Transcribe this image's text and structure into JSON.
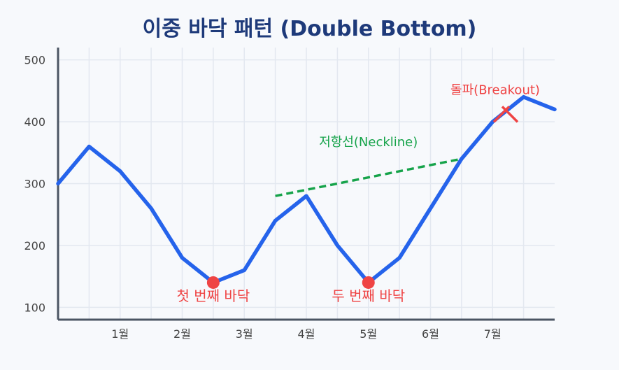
{
  "chart_data": {
    "type": "line",
    "title": "이중 바닥 패턴 (Double Bottom)",
    "xlabel": "",
    "ylabel": "",
    "ylim": [
      80,
      520
    ],
    "xlim": [
      0,
      8
    ],
    "grid": true,
    "x_ticks": [
      {
        "x": 1,
        "label": "1월"
      },
      {
        "x": 2,
        "label": "2월"
      },
      {
        "x": 3,
        "label": "3월"
      },
      {
        "x": 4,
        "label": "4월"
      },
      {
        "x": 5,
        "label": "5월"
      },
      {
        "x": 6,
        "label": "6월"
      },
      {
        "x": 7,
        "label": "7월"
      }
    ],
    "y_ticks": [
      100,
      200,
      300,
      400,
      500
    ],
    "series": [
      {
        "color": "#2563eb",
        "x": [
          0,
          0.5,
          1,
          1.5,
          2,
          2.5,
          3,
          3.5,
          4,
          4.5,
          5,
          5.5,
          6,
          6.5,
          7,
          7.5,
          8
        ],
        "values": [
          300,
          360,
          320,
          260,
          180,
          140,
          160,
          240,
          280,
          200,
          140,
          180,
          260,
          340,
          400,
          440,
          420
        ]
      }
    ],
    "bottoms": [
      {
        "x": 2.5,
        "y": 140,
        "label": "첫 번째 바닥"
      },
      {
        "x": 5,
        "y": 140,
        "label": "두 번째 바닥"
      }
    ],
    "neckline": {
      "label": "저항선(Neckline)",
      "start": {
        "x": 3.5,
        "y": 280
      },
      "end": {
        "x": 6.5,
        "y": 340
      },
      "color": "#16a34a"
    },
    "breakout": {
      "label": "돌파(Breakout)",
      "x": 7.2,
      "y": 420,
      "color": "#ef4444"
    },
    "colors": {
      "line": "#2563eb",
      "bottom_marker": "#ef4444",
      "axis": "#4b5563",
      "grid": "#e3e8f0",
      "title": "#1e3a7a"
    }
  }
}
